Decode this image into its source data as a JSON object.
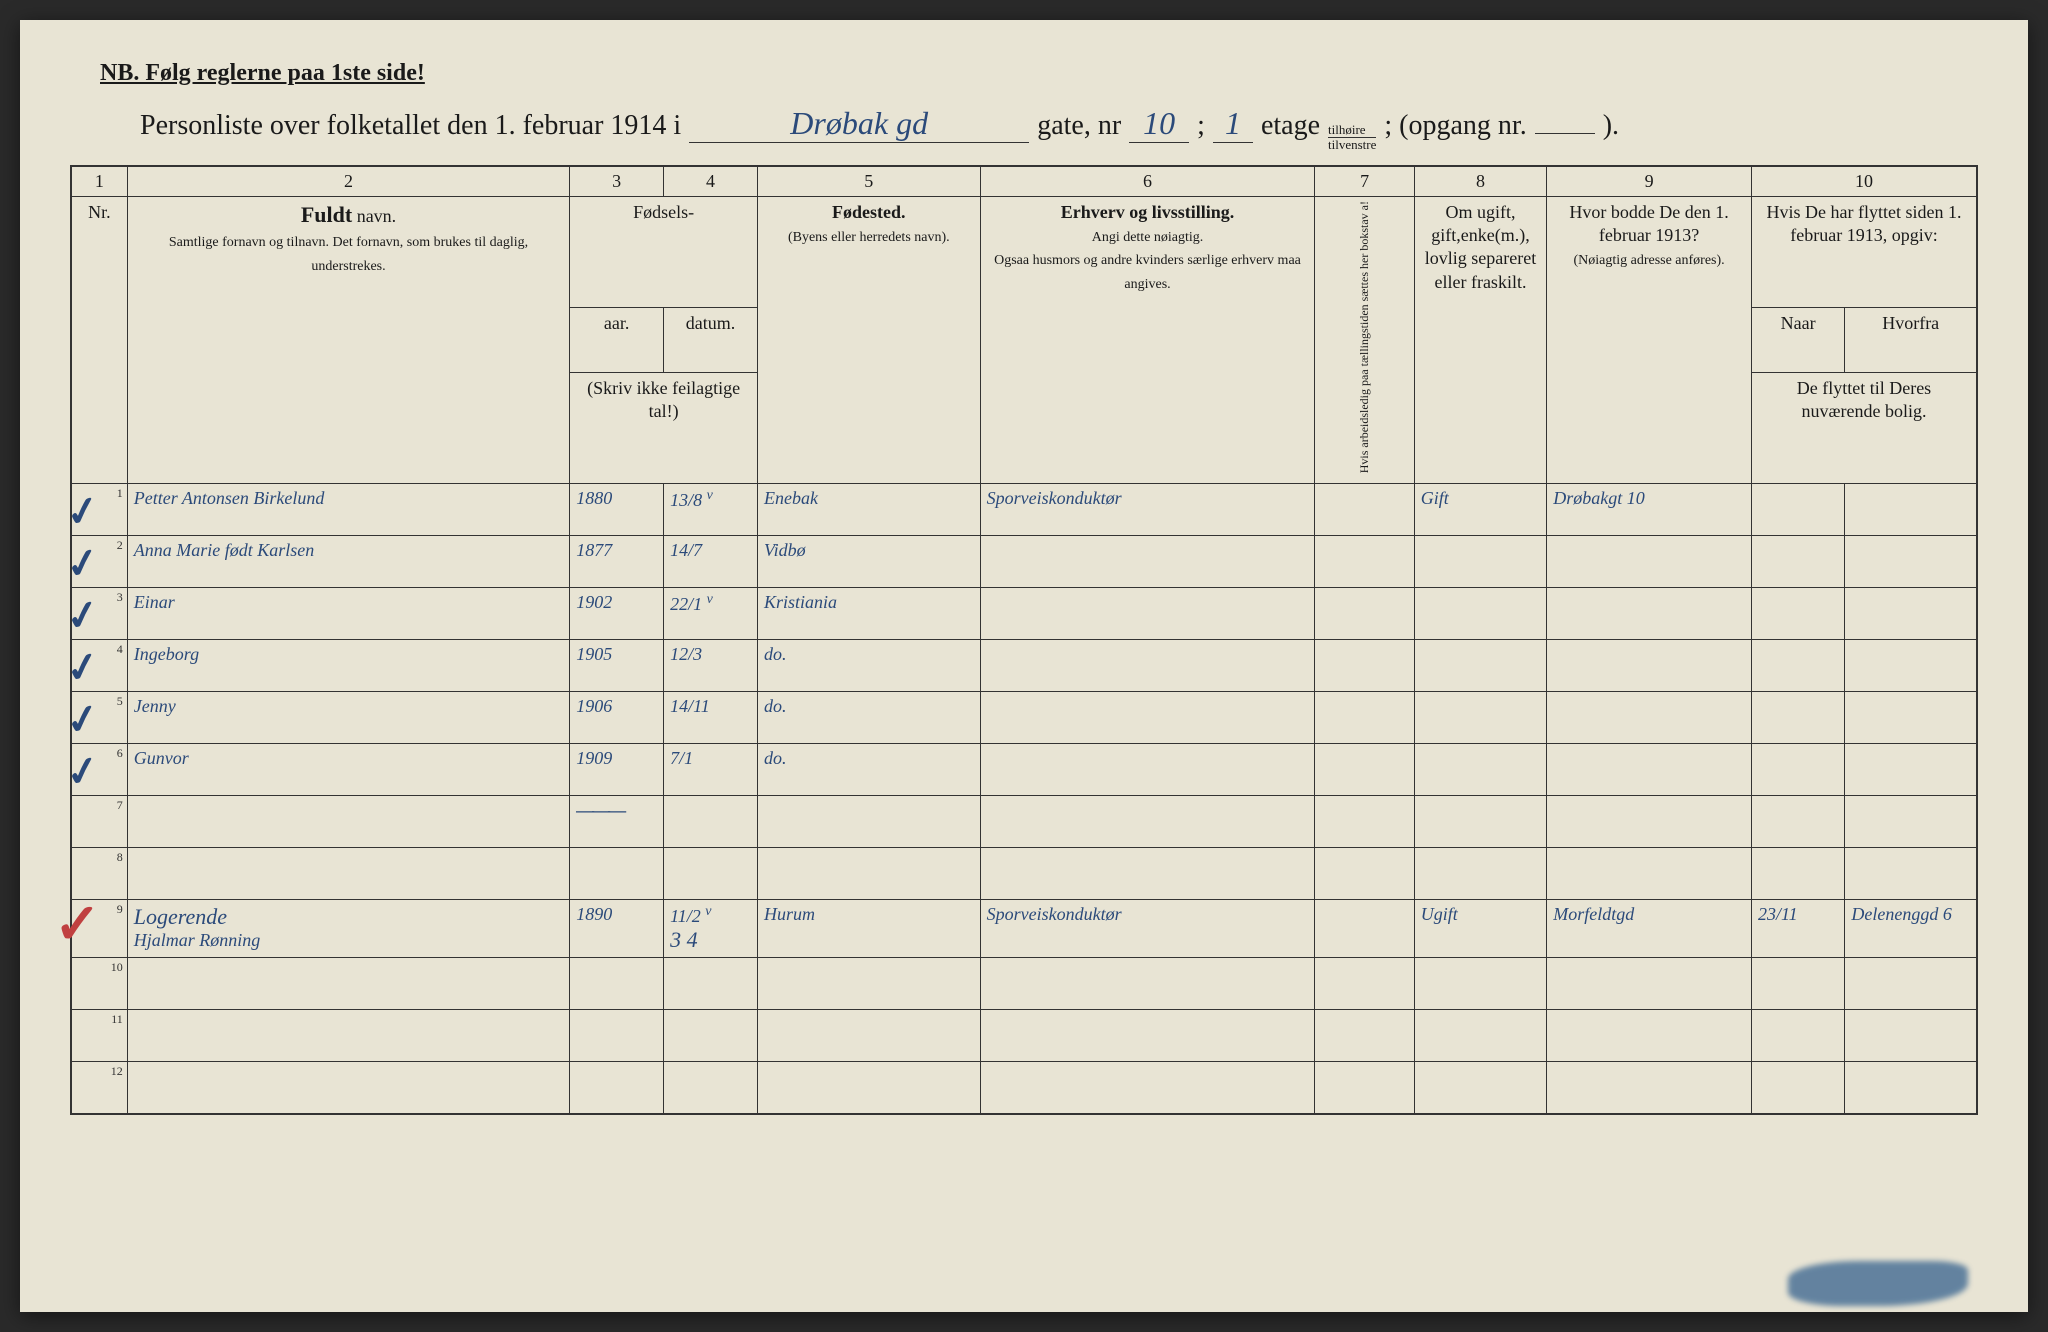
{
  "nb_text": "NB.  Følg reglerne paa 1ste side!",
  "title": {
    "prefix": "Personliste over folketallet den 1. februar 1914 i",
    "street_hand": "Drøbak gd",
    "gate_label": "gate, nr",
    "gate_nr_hand": "10",
    "semicolon1": ";",
    "etage_hand": "1",
    "etage_label": "etage",
    "tilh_top": "tilhøire",
    "tilh_bot": "tilvenstre",
    "opgang": "; (opgang nr.",
    "close": ")."
  },
  "colnums": [
    "1",
    "2",
    "3",
    "4",
    "5",
    "6",
    "7",
    "8",
    "9",
    "10"
  ],
  "headers": {
    "nr": "Nr.",
    "name_bold": "Fuldt",
    "name_suffix": " navn.",
    "name_sub": "Samtlige fornavn og tilnavn.  Det fornavn, som brukes til daglig, understrekes.",
    "fodsels": "Fødsels-",
    "aar": "aar.",
    "datum": "datum.",
    "skriv": "(Skriv ikke feilagtige tal!)",
    "fodested": "Fødested.",
    "fodested_sub": "(Byens eller herredets navn).",
    "erhverv": "Erhverv og livsstilling.",
    "erhverv_sub": "Angi dette nøiagtig.\nOgsaa husmors og andre kvinders særlige erhverv maa angives.",
    "col7": "Hvis arbeidsledig paa tællingstiden sættes her bokstav a!",
    "col8": "Om ugift, gift,enke(m.), lovlig separeret eller fraskilt.",
    "col9": "Hvor bodde De den 1. februar 1913?",
    "col9_sub": "(Nøiagtig adresse anføres).",
    "col10": "Hvis De har flyttet siden 1. februar 1913, opgiv:",
    "naar": "Naar",
    "hvorfra": "Hvorfra",
    "col10_sub": "De flyttet til Deres nuværende bolig."
  },
  "rows": [
    {
      "nr": "1",
      "check": true,
      "name": "Petter Antonsen Birkelund",
      "aar": "1880",
      "datum": "13/8",
      "v": "v",
      "sted": "Enebak",
      "erhverv": "Sporveiskonduktør",
      "c7": "",
      "c8": "Gift",
      "c9": "Drøbakgt 10",
      "naar": "",
      "hvorfra": ""
    },
    {
      "nr": "2",
      "check": true,
      "name": "Anna Marie født Karlsen",
      "aar": "1877",
      "datum": "14/7",
      "v": "",
      "sted": "Vidbø",
      "erhverv": "",
      "c7": "",
      "c8": "",
      "c9": "",
      "naar": "",
      "hvorfra": ""
    },
    {
      "nr": "3",
      "check": true,
      "name": "Einar",
      "aar": "1902",
      "datum": "22/1",
      "v": "v",
      "sted": "Kristiania",
      "erhverv": "",
      "c7": "",
      "c8": "",
      "c9": "",
      "naar": "",
      "hvorfra": ""
    },
    {
      "nr": "4",
      "check": true,
      "name": "Ingeborg",
      "aar": "1905",
      "datum": "12/3",
      "v": "",
      "sted": "do.",
      "erhverv": "",
      "c7": "",
      "c8": "",
      "c9": "",
      "naar": "",
      "hvorfra": ""
    },
    {
      "nr": "5",
      "check": true,
      "name": "Jenny",
      "aar": "1906",
      "datum": "14/11",
      "v": "",
      "sted": "do.",
      "erhverv": "",
      "c7": "",
      "c8": "",
      "c9": "",
      "naar": "",
      "hvorfra": ""
    },
    {
      "nr": "6",
      "check": true,
      "name": "Gunvor",
      "aar": "1909",
      "datum": "7/1",
      "v": "",
      "sted": "do.",
      "erhverv": "",
      "c7": "",
      "c8": "",
      "c9": "",
      "naar": "",
      "hvorfra": ""
    },
    {
      "nr": "7",
      "check": false,
      "name": "",
      "aar": "",
      "datum": "",
      "v": "",
      "sted": "",
      "erhverv": "",
      "c7": "",
      "c8": "",
      "c9": "",
      "naar": "",
      "hvorfra": "",
      "scribble": true
    },
    {
      "nr": "8",
      "check": false,
      "name": "",
      "aar": "",
      "datum": "",
      "v": "",
      "sted": "",
      "erhverv": "",
      "c7": "",
      "c8": "",
      "c9": "",
      "naar": "",
      "hvorfra": ""
    },
    {
      "nr": "9",
      "check": false,
      "red": true,
      "note": "Logerende",
      "name": "Hjalmar Rønning",
      "aar": "1890",
      "datum": "11/2",
      "v": "v",
      "extra": "3  4",
      "sted": "Hurum",
      "erhverv": "Sporveiskonduktør",
      "c7": "",
      "c8": "Ugift",
      "c9": "Morfeldtgd",
      "naar": "23/11",
      "hvorfra": "Delenenggd 6"
    },
    {
      "nr": "10",
      "check": false,
      "name": "",
      "aar": "",
      "datum": "",
      "v": "",
      "sted": "",
      "erhverv": "",
      "c7": "",
      "c8": "",
      "c9": "",
      "naar": "",
      "hvorfra": ""
    },
    {
      "nr": "11",
      "check": false,
      "name": "",
      "aar": "",
      "datum": "",
      "v": "",
      "sted": "",
      "erhverv": "",
      "c7": "",
      "c8": "",
      "c9": "",
      "naar": "",
      "hvorfra": ""
    },
    {
      "nr": "12",
      "check": false,
      "name": "",
      "aar": "",
      "datum": "",
      "v": "",
      "sted": "",
      "erhverv": "",
      "c7": "",
      "c8": "",
      "c9": "",
      "naar": "",
      "hvorfra": ""
    }
  ],
  "scribble_text": "———",
  "colors": {
    "paper": "#e8e4d4",
    "ink_print": "#1a1a1a",
    "ink_hand": "#2b4a7a",
    "ink_red": "#c04040"
  },
  "col_widths_pct": [
    3,
    24,
    5,
    5,
    12,
    18,
    3,
    7,
    11,
    5,
    7
  ]
}
